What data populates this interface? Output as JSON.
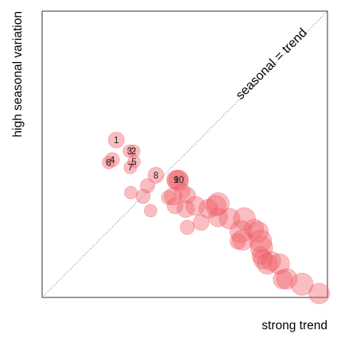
{
  "chart_data": {
    "type": "scatter",
    "title": "",
    "xlabel": "strong trend",
    "ylabel": "high seasonal variation",
    "xlim": [
      0,
      1
    ],
    "ylim": [
      0,
      1
    ],
    "grid": false,
    "legend": "none",
    "colors": {
      "point_fill": "#f0636e",
      "point_stroke": "#ea4753",
      "frame": "#000000",
      "reference_line": "#555555"
    },
    "reference_line": {
      "label": "seasonal = trend",
      "from": [
        0,
        0
      ],
      "to": [
        1,
        1
      ],
      "style": "dotted"
    },
    "points": [
      {
        "label": "1",
        "x": 0.26,
        "y": 0.55,
        "size": 10
      },
      {
        "label": "2",
        "x": 0.321,
        "y": 0.511,
        "size": 8
      },
      {
        "label": "3",
        "x": 0.306,
        "y": 0.511,
        "size": 8
      },
      {
        "label": "4",
        "x": 0.246,
        "y": 0.481,
        "size": 9
      },
      {
        "label": "5",
        "x": 0.322,
        "y": 0.474,
        "size": 8
      },
      {
        "label": "6",
        "x": 0.233,
        "y": 0.471,
        "size": 8
      },
      {
        "label": "7",
        "x": 0.309,
        "y": 0.454,
        "size": 8
      },
      {
        "label": "8",
        "x": 0.399,
        "y": 0.427,
        "size": 10
      },
      {
        "label": "9",
        "x": 0.47,
        "y": 0.411,
        "size": 12
      },
      {
        "label": "10",
        "x": 0.479,
        "y": 0.411,
        "size": 12
      },
      {
        "label": "",
        "x": 0.476,
        "y": 0.408,
        "size": 13
      },
      {
        "label": "",
        "x": 0.311,
        "y": 0.366,
        "size": 8
      },
      {
        "label": "",
        "x": 0.369,
        "y": 0.39,
        "size": 9
      },
      {
        "label": "",
        "x": 0.354,
        "y": 0.353,
        "size": 9
      },
      {
        "label": "",
        "x": 0.443,
        "y": 0.349,
        "size": 9
      },
      {
        "label": "",
        "x": 0.38,
        "y": 0.303,
        "size": 8
      },
      {
        "label": "",
        "x": 0.459,
        "y": 0.353,
        "size": 11
      },
      {
        "label": "",
        "x": 0.466,
        "y": 0.32,
        "size": 10
      },
      {
        "label": "",
        "x": 0.491,
        "y": 0.371,
        "size": 10
      },
      {
        "label": "",
        "x": 0.509,
        "y": 0.245,
        "size": 9
      },
      {
        "label": "",
        "x": 0.503,
        "y": 0.31,
        "size": 11
      },
      {
        "label": "",
        "x": 0.51,
        "y": 0.356,
        "size": 10
      },
      {
        "label": "",
        "x": 0.537,
        "y": 0.32,
        "size": 12
      },
      {
        "label": "",
        "x": 0.557,
        "y": 0.262,
        "size": 10
      },
      {
        "label": "",
        "x": 0.583,
        "y": 0.31,
        "size": 12
      },
      {
        "label": "",
        "x": 0.609,
        "y": 0.32,
        "size": 13
      },
      {
        "label": "",
        "x": 0.617,
        "y": 0.28,
        "size": 12
      },
      {
        "label": "",
        "x": 0.617,
        "y": 0.327,
        "size": 14
      },
      {
        "label": "",
        "x": 0.657,
        "y": 0.275,
        "size": 13
      },
      {
        "label": "",
        "x": 0.686,
        "y": 0.196,
        "size": 10
      },
      {
        "label": "",
        "x": 0.697,
        "y": 0.23,
        "size": 14
      },
      {
        "label": "",
        "x": 0.703,
        "y": 0.201,
        "size": 13
      },
      {
        "label": "",
        "x": 0.709,
        "y": 0.275,
        "size": 14
      },
      {
        "label": "",
        "x": 0.743,
        "y": 0.24,
        "size": 12
      },
      {
        "label": "",
        "x": 0.757,
        "y": 0.229,
        "size": 13
      },
      {
        "label": "",
        "x": 0.766,
        "y": 0.196,
        "size": 14
      },
      {
        "label": "",
        "x": 0.769,
        "y": 0.173,
        "size": 14
      },
      {
        "label": "",
        "x": 0.766,
        "y": 0.146,
        "size": 11
      },
      {
        "label": "",
        "x": 0.774,
        "y": 0.133,
        "size": 12
      },
      {
        "label": "",
        "x": 0.789,
        "y": 0.117,
        "size": 13
      },
      {
        "label": "",
        "x": 0.803,
        "y": 0.127,
        "size": 12
      },
      {
        "label": "",
        "x": 0.831,
        "y": 0.117,
        "size": 13
      },
      {
        "label": "",
        "x": 0.843,
        "y": 0.063,
        "size": 12
      },
      {
        "label": "",
        "x": 0.857,
        "y": 0.065,
        "size": 13
      },
      {
        "label": "",
        "x": 0.911,
        "y": 0.046,
        "size": 14
      },
      {
        "label": "",
        "x": 0.971,
        "y": 0.014,
        "size": 13
      }
    ]
  }
}
